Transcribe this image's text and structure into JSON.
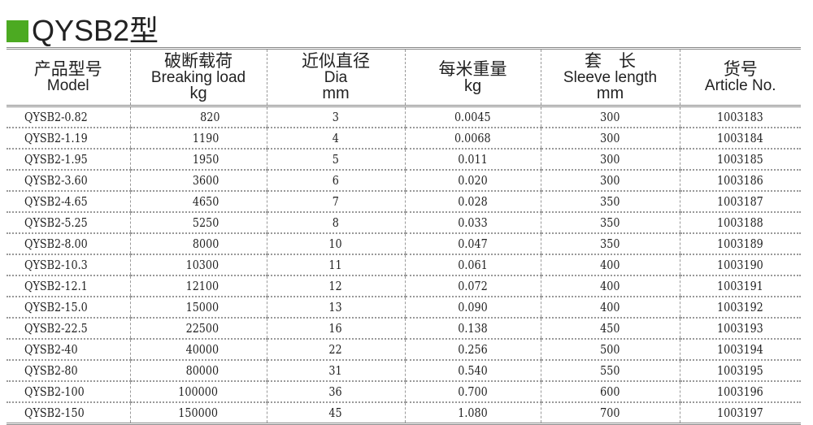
{
  "title": "QYSB2型",
  "accent_color": "#4caa22",
  "headers": [
    {
      "cn": "产品型号",
      "en": "Model",
      "unit": ""
    },
    {
      "cn": "破断载荷",
      "en": "Breaking load",
      "unit": "kg"
    },
    {
      "cn": "近似直径",
      "en": "Dia",
      "unit": "mm"
    },
    {
      "cn": "每米重量",
      "en": "",
      "unit": "kg"
    },
    {
      "cn": "套　长",
      "en": "Sleeve length",
      "unit": "mm"
    },
    {
      "cn": "货号",
      "en": "Article No.",
      "unit": ""
    }
  ],
  "rows": [
    [
      "QYSB2-0.82",
      "820",
      "3",
      "0.0045",
      "300",
      "1003183"
    ],
    [
      "QYSB2-1.19",
      "1190",
      "4",
      "0.0068",
      "300",
      "1003184"
    ],
    [
      "QYSB2-1.95",
      "1950",
      "5",
      "0.011",
      "300",
      "1003185"
    ],
    [
      "QYSB2-3.60",
      "3600",
      "6",
      "0.020",
      "300",
      "1003186"
    ],
    [
      "QYSB2-4.65",
      "4650",
      "7",
      "0.028",
      "350",
      "1003187"
    ],
    [
      "QYSB2-5.25",
      "5250",
      "8",
      "0.033",
      "350",
      "1003188"
    ],
    [
      "QYSB2-8.00",
      "8000",
      "10",
      "0.047",
      "350",
      "1003189"
    ],
    [
      "QYSB2-10.3",
      "10300",
      "11",
      "0.061",
      "400",
      "1003190"
    ],
    [
      "QYSB2-12.1",
      "12100",
      "12",
      "0.072",
      "400",
      "1003191"
    ],
    [
      "QYSB2-15.0",
      "15000",
      "13",
      "0.090",
      "400",
      "1003192"
    ],
    [
      "QYSB2-22.5",
      "22500",
      "16",
      "0.138",
      "450",
      "1003193"
    ],
    [
      "QYSB2-40",
      "40000",
      "22",
      "0.256",
      "500",
      "1003194"
    ],
    [
      "QYSB2-80",
      "80000",
      "31",
      "0.540",
      "550",
      "1003195"
    ],
    [
      "QYSB2-100",
      "100000",
      "36",
      "0.700",
      "600",
      "1003196"
    ],
    [
      "QYSB2-150",
      "150000",
      "45",
      "1.080",
      "700",
      "1003197"
    ]
  ]
}
